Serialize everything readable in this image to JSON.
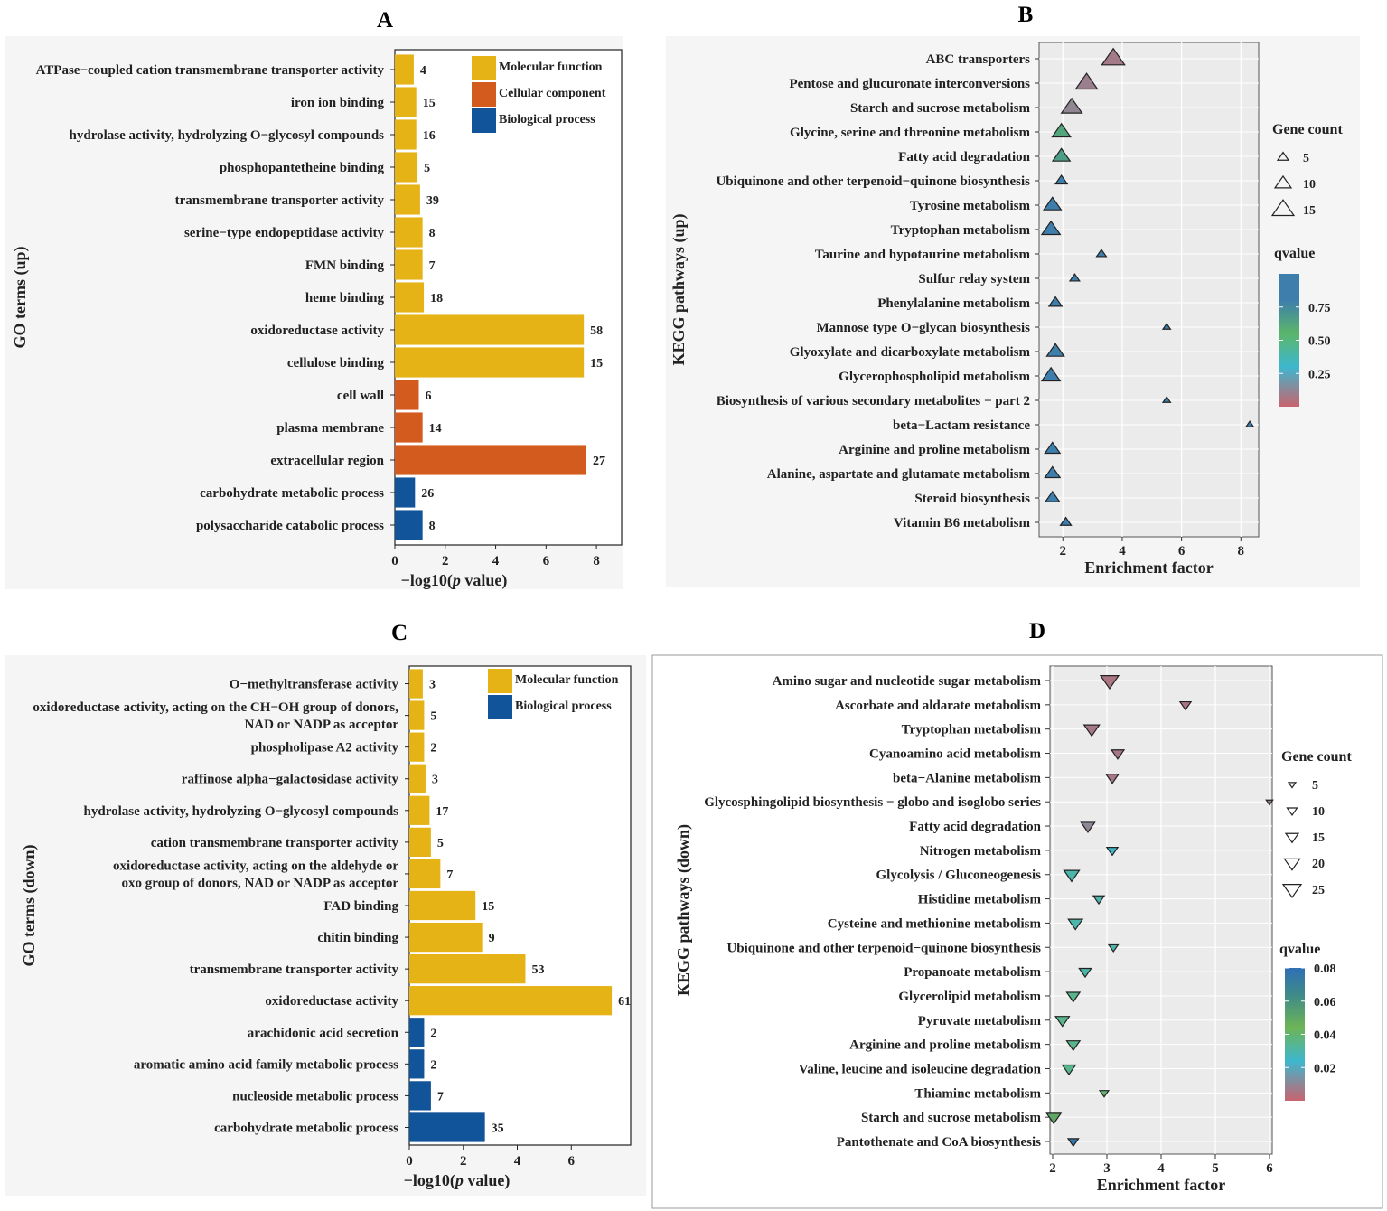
{
  "colors": {
    "molecular": "#E5B316",
    "cellular": "#D45B1E",
    "biological": "#11549A"
  },
  "chart_data": [
    {
      "id": "A",
      "panel_label": "A",
      "type": "bar",
      "orientation": "horizontal",
      "ylabel": "GO terms (up)",
      "xlabel_prefix": "−log10(",
      "xlabel_italic": "p",
      "xlabel_suffix": " value)",
      "xlim": [
        0,
        9
      ],
      "xticks": [
        "0",
        "2",
        "4",
        "6",
        "8"
      ],
      "legend": [
        {
          "label": "Molecular function",
          "group": "molecular"
        },
        {
          "label": "Cellular component",
          "group": "cellular"
        },
        {
          "label": "Biological process",
          "group": "biological"
        }
      ],
      "bars": [
        {
          "label": [
            "ATPase−coupled cation transmembrane transporter activity"
          ],
          "value": 0.75,
          "count": "4",
          "group": "molecular"
        },
        {
          "label": [
            "iron ion binding"
          ],
          "value": 0.85,
          "count": "15",
          "group": "molecular"
        },
        {
          "label": [
            "hydrolase activity, hydrolyzing O−glycosyl compounds"
          ],
          "value": 0.85,
          "count": "16",
          "group": "molecular"
        },
        {
          "label": [
            "phosphopantetheine binding"
          ],
          "value": 0.9,
          "count": "5",
          "group": "molecular"
        },
        {
          "label": [
            "transmembrane transporter activity"
          ],
          "value": 1.0,
          "count": "39",
          "group": "molecular"
        },
        {
          "label": [
            "serine−type endopeptidase activity"
          ],
          "value": 1.1,
          "count": "8",
          "group": "molecular"
        },
        {
          "label": [
            "FMN binding"
          ],
          "value": 1.1,
          "count": "7",
          "group": "molecular"
        },
        {
          "label": [
            "heme binding"
          ],
          "value": 1.15,
          "count": "18",
          "group": "molecular"
        },
        {
          "label": [
            "oxidoreductase activity"
          ],
          "value": 7.5,
          "count": "58",
          "group": "molecular"
        },
        {
          "label": [
            "cellulose binding"
          ],
          "value": 7.5,
          "count": "15",
          "group": "molecular"
        },
        {
          "label": [
            "cell wall"
          ],
          "value": 0.95,
          "count": "6",
          "group": "cellular"
        },
        {
          "label": [
            "plasma membrane"
          ],
          "value": 1.1,
          "count": "14",
          "group": "cellular"
        },
        {
          "label": [
            "extracellular region"
          ],
          "value": 7.6,
          "count": "27",
          "group": "cellular"
        },
        {
          "label": [
            "carbohydrate metabolic process"
          ],
          "value": 0.8,
          "count": "26",
          "group": "biological"
        },
        {
          "label": [
            "polysaccharide catabolic process"
          ],
          "value": 1.1,
          "count": "8",
          "group": "biological"
        }
      ]
    },
    {
      "id": "B",
      "panel_label": "B",
      "type": "scatter",
      "marker": "triangle-up",
      "ylabel": "KEGG pathways (up)",
      "xlabel": "Enrichment factor",
      "xlim": [
        1.2,
        8.6
      ],
      "xticks": [
        2,
        4,
        6,
        8
      ],
      "size_legend_title": "Gene count",
      "size_legend": [
        5,
        10,
        15
      ],
      "color_legend_title": "qvalue",
      "color_range": [
        0.0,
        1.0
      ],
      "color_ticks": [
        "0.75",
        "0.50",
        "0.25"
      ],
      "color_tick_values": [
        0.75,
        0.5,
        0.25
      ],
      "points": [
        {
          "label": "ABC transporters",
          "x": 3.7,
          "count": 16,
          "q": 0.08
        },
        {
          "label": "Pentose and glucuronate interconversions",
          "x": 2.8,
          "count": 15,
          "q": 0.1
        },
        {
          "label": "Starch and sucrose metabolism",
          "x": 2.3,
          "count": 14,
          "q": 0.12
        },
        {
          "label": "Glycine, serine and threonine metabolism",
          "x": 1.95,
          "count": 12,
          "q": 0.62
        },
        {
          "label": "Fatty acid degradation",
          "x": 1.95,
          "count": 11,
          "q": 0.66
        },
        {
          "label": "Ubiquinone and other terpenoid−quinone biosynthesis",
          "x": 1.95,
          "count": 6,
          "q": 0.9
        },
        {
          "label": "Tyrosine metabolism",
          "x": 1.65,
          "count": 11,
          "q": 0.92
        },
        {
          "label": "Tryptophan metabolism",
          "x": 1.6,
          "count": 12,
          "q": 0.92
        },
        {
          "label": "Taurine and hypotaurine metabolism",
          "x": 3.3,
          "count": 4,
          "q": 0.92
        },
        {
          "label": "Sulfur relay system",
          "x": 2.4,
          "count": 4,
          "q": 0.92
        },
        {
          "label": "Phenylalanine metabolism",
          "x": 1.75,
          "count": 7,
          "q": 0.92
        },
        {
          "label": "Mannose type O−glycan biosynthesis",
          "x": 5.5,
          "count": 2,
          "q": 0.92
        },
        {
          "label": "Glyoxylate and dicarboxylate metabolism",
          "x": 1.75,
          "count": 11,
          "q": 0.92
        },
        {
          "label": "Glycerophospholipid metabolism",
          "x": 1.6,
          "count": 12,
          "q": 0.92
        },
        {
          "label": "Biosynthesis of various secondary metabolites − part 2",
          "x": 5.5,
          "count": 2,
          "q": 0.92
        },
        {
          "label": "beta−Lactam resistance",
          "x": 8.3,
          "count": 2,
          "q": 0.92
        },
        {
          "label": "Arginine and proline metabolism",
          "x": 1.65,
          "count": 9,
          "q": 0.92
        },
        {
          "label": "Alanine, aspartate and glutamate metabolism",
          "x": 1.65,
          "count": 9,
          "q": 0.92
        },
        {
          "label": "Steroid biosynthesis",
          "x": 1.65,
          "count": 8,
          "q": 0.92
        },
        {
          "label": "Vitamin B6 metabolism",
          "x": 2.1,
          "count": 5,
          "q": 0.92
        }
      ]
    },
    {
      "id": "C",
      "panel_label": "C",
      "type": "bar",
      "orientation": "horizontal",
      "ylabel": "GO terms (down)",
      "xlabel_prefix": "−log10(",
      "xlabel_italic": "p",
      "xlabel_suffix": " value)",
      "xlim": [
        0,
        8.2
      ],
      "xticks": [
        "0",
        "2",
        "4",
        "6"
      ],
      "legend": [
        {
          "label": "Molecular function",
          "group": "molecular"
        },
        {
          "label": "Biological process",
          "group": "biological"
        }
      ],
      "bars": [
        {
          "label": [
            "O−methyltransferase activity"
          ],
          "value": 0.5,
          "count": "3",
          "group": "molecular"
        },
        {
          "label": [
            "oxidoreductase activity, acting on the CH−OH group of donors,",
            "NAD or NADP as acceptor"
          ],
          "value": 0.55,
          "count": "5",
          "group": "molecular"
        },
        {
          "label": [
            "phospholipase A2 activity"
          ],
          "value": 0.55,
          "count": "2",
          "group": "molecular"
        },
        {
          "label": [
            "raffinose alpha−galactosidase activity"
          ],
          "value": 0.6,
          "count": "3",
          "group": "molecular"
        },
        {
          "label": [
            "hydrolase activity, hydrolyzing O−glycosyl compounds"
          ],
          "value": 0.75,
          "count": "17",
          "group": "molecular"
        },
        {
          "label": [
            "cation transmembrane transporter activity"
          ],
          "value": 0.8,
          "count": "5",
          "group": "molecular"
        },
        {
          "label": [
            "oxidoreductase activity, acting on the aldehyde or",
            "oxo group of donors, NAD or NADP as acceptor"
          ],
          "value": 1.15,
          "count": "7",
          "group": "molecular"
        },
        {
          "label": [
            "FAD binding"
          ],
          "value": 2.45,
          "count": "15",
          "group": "molecular"
        },
        {
          "label": [
            "chitin binding"
          ],
          "value": 2.7,
          "count": "9",
          "group": "molecular"
        },
        {
          "label": [
            "transmembrane transporter activity"
          ],
          "value": 4.3,
          "count": "53",
          "group": "molecular"
        },
        {
          "label": [
            "oxidoreductase activity"
          ],
          "value": 7.5,
          "count": "61",
          "group": "molecular"
        },
        {
          "label": [
            "arachidonic acid secretion"
          ],
          "value": 0.55,
          "count": "2",
          "group": "biological"
        },
        {
          "label": [
            "aromatic amino acid family metabolic process"
          ],
          "value": 0.55,
          "count": "2",
          "group": "biological"
        },
        {
          "label": [
            "nucleoside metabolic process"
          ],
          "value": 0.8,
          "count": "7",
          "group": "biological"
        },
        {
          "label": [
            "carbohydrate metabolic process"
          ],
          "value": 2.8,
          "count": "35",
          "group": "biological"
        }
      ]
    },
    {
      "id": "D",
      "panel_label": "D",
      "type": "scatter",
      "marker": "triangle-down",
      "ylabel": "KEGG pathways (down)",
      "xlabel": "Enrichment factor",
      "xlim": [
        1.95,
        6.05
      ],
      "xticks": [
        2,
        3,
        4,
        5,
        6
      ],
      "size_legend_title": "Gene count",
      "size_legend": [
        5,
        10,
        15,
        20,
        25
      ],
      "color_legend_title": "qvalue",
      "color_range": [
        0.0,
        0.08
      ],
      "color_ticks": [
        "0.08",
        "0.06",
        "0.04",
        "0.02"
      ],
      "color_tick_values": [
        0.08,
        0.06,
        0.04,
        0.02
      ],
      "points": [
        {
          "label": "Amino sugar and nucleotide sugar metabolism",
          "x": 3.05,
          "count": 25,
          "q": 0.005
        },
        {
          "label": "Ascorbate and aldarate metabolism",
          "x": 4.45,
          "count": 12,
          "q": 0.005
        },
        {
          "label": "Tryptophan metabolism",
          "x": 2.72,
          "count": 20,
          "q": 0.006
        },
        {
          "label": "Cyanoamino acid metabolism",
          "x": 3.2,
          "count": 15,
          "q": 0.006
        },
        {
          "label": "beta−Alanine metabolism",
          "x": 3.1,
          "count": 15,
          "q": 0.006
        },
        {
          "label": "Glycosphingolipid biosynthesis − globo and isoglobo series",
          "x": 6.0,
          "count": 4,
          "q": 0.008
        },
        {
          "label": "Fatty acid degradation",
          "x": 2.65,
          "count": 17,
          "q": 0.01
        },
        {
          "label": "Nitrogen metabolism",
          "x": 3.1,
          "count": 12,
          "q": 0.025
        },
        {
          "label": "Glycolysis / Gluconeogenesis",
          "x": 2.35,
          "count": 20,
          "q": 0.03
        },
        {
          "label": "Histidine metabolism",
          "x": 2.85,
          "count": 12,
          "q": 0.03
        },
        {
          "label": "Cysteine and methionine metabolism",
          "x": 2.42,
          "count": 18,
          "q": 0.03
        },
        {
          "label": "Ubiquinone and other terpenoid−quinone biosynthesis",
          "x": 3.12,
          "count": 9,
          "q": 0.03
        },
        {
          "label": "Propanoate metabolism",
          "x": 2.6,
          "count": 14,
          "q": 0.03
        },
        {
          "label": "Glycerolipid metabolism",
          "x": 2.38,
          "count": 16,
          "q": 0.035
        },
        {
          "label": "Pyruvate metabolism",
          "x": 2.18,
          "count": 17,
          "q": 0.035
        },
        {
          "label": "Arginine and proline metabolism",
          "x": 2.38,
          "count": 16,
          "q": 0.035
        },
        {
          "label": "Valine, leucine and isoleucine degradation",
          "x": 2.3,
          "count": 16,
          "q": 0.035
        },
        {
          "label": "Thiamine metabolism",
          "x": 2.95,
          "count": 8,
          "q": 0.04
        },
        {
          "label": "Starch and sucrose metabolism",
          "x": 2.02,
          "count": 18,
          "q": 0.05
        },
        {
          "label": "Pantothenate and CoA biosynthesis",
          "x": 2.38,
          "count": 11,
          "q": 0.075
        }
      ]
    }
  ]
}
